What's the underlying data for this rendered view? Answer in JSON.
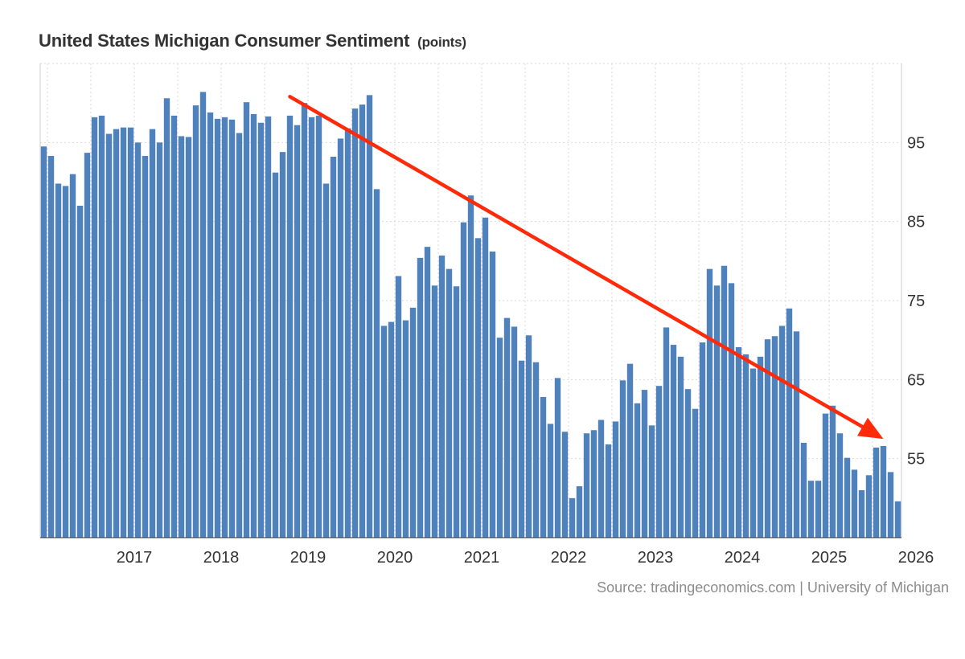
{
  "header": {
    "title": "United States Michigan Consumer Sentiment",
    "unit": "(points)"
  },
  "footer": {
    "source": "Source: tradingeconomics.com | University of Michigan"
  },
  "colors": {
    "bar": "#4f81bd",
    "arrow": "#ff2a0a",
    "grid": "#d9d9d9"
  },
  "chart_data": {
    "type": "bar",
    "title": "United States Michigan Consumer Sentiment",
    "unit": "(points)",
    "start_date": "2016-06",
    "frequency": "monthly",
    "x_tick_labels": [
      "2017",
      "2018",
      "2019",
      "2020",
      "2021",
      "2022",
      "2023",
      "2024",
      "2025",
      "2026"
    ],
    "y_tick_values": [
      55,
      65,
      75,
      85,
      95
    ],
    "y_axis_position": "right",
    "ylim": [
      45,
      105
    ],
    "grid": true,
    "values": [
      94.5,
      93.3,
      89.8,
      89.5,
      91.0,
      87.0,
      93.7,
      98.2,
      98.4,
      96.1,
      96.7,
      96.9,
      96.9,
      95.0,
      93.3,
      96.7,
      95.0,
      100.6,
      98.4,
      95.8,
      95.7,
      99.7,
      101.4,
      98.8,
      98.0,
      98.2,
      97.9,
      96.2,
      100.1,
      98.6,
      97.5,
      98.3,
      91.2,
      93.8,
      98.4,
      97.2,
      100.0,
      98.2,
      98.4,
      89.8,
      93.2,
      95.5,
      96.8,
      99.3,
      99.8,
      101.0,
      89.1,
      71.8,
      72.3,
      78.1,
      72.5,
      74.1,
      80.4,
      81.8,
      76.9,
      80.7,
      79.0,
      76.8,
      84.9,
      88.3,
      82.9,
      85.5,
      81.2,
      70.3,
      72.8,
      71.7,
      67.4,
      70.6,
      67.2,
      62.8,
      59.4,
      65.2,
      58.4,
      50.0,
      51.5,
      58.2,
      58.6,
      59.9,
      56.8,
      59.7,
      64.9,
      67.0,
      62.0,
      63.7,
      59.2,
      64.2,
      71.6,
      69.4,
      67.9,
      63.8,
      61.3,
      69.7,
      79.0,
      76.9,
      79.4,
      77.2,
      69.1,
      68.2,
      66.4,
      67.9,
      70.1,
      70.5,
      71.8,
      74.0,
      71.1,
      57.0,
      52.2,
      52.2,
      60.7,
      61.7,
      58.2,
      55.1,
      53.6,
      51.0,
      52.9,
      56.4,
      56.6,
      53.3,
      49.6
    ],
    "annotation": {
      "type": "trend-arrow",
      "from": {
        "date": "2019-04",
        "value": 100.8
      },
      "to": {
        "date": "2026-02",
        "value": 57.5
      }
    }
  }
}
